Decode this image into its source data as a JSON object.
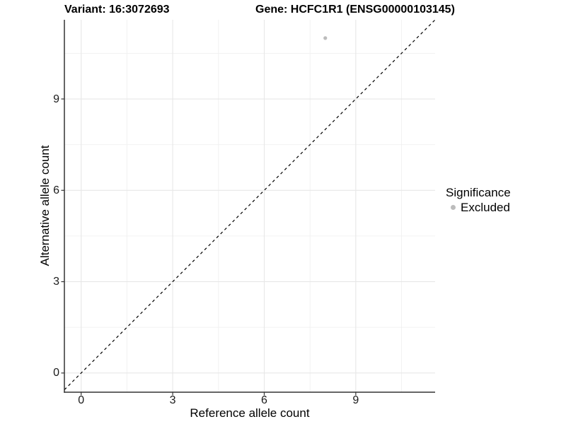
{
  "title": {
    "variant": "Variant: 16:3072693",
    "gene": "Gene: HCFC1R1 (ENSG00000103145)"
  },
  "axes": {
    "x": {
      "label": "Reference allele count"
    },
    "y": {
      "label": "Alternative allele count"
    }
  },
  "legend": {
    "title": "Significance",
    "items": [
      {
        "label": "Excluded",
        "color": "#bcbcbc"
      }
    ]
  },
  "colors": {
    "background": "#ffffff",
    "axis_line": "#333333",
    "major_grid": "#e7e7e7",
    "minor_grid": "#f0f0f0",
    "tick_mark": "#333333",
    "reference_line": "#000000",
    "point_excluded": "#bcbcbc"
  },
  "chart_data": {
    "type": "scatter",
    "title": "Variant: 16:3072693    Gene: HCFC1R1 (ENSG00000103145)",
    "xlabel": "Reference allele count",
    "ylabel": "Alternative allele count",
    "xticks": [
      0,
      3,
      6,
      9
    ],
    "yticks": [
      0,
      3,
      6,
      9
    ],
    "xminor": [
      1.5,
      4.5,
      7.5,
      10.5
    ],
    "yminor": [
      1.5,
      4.5,
      7.5,
      10.5
    ],
    "xlim": [
      -0.55,
      11.6
    ],
    "ylim": [
      -0.63,
      11.6
    ],
    "grid": true,
    "legend_position": "right-middle",
    "series": [
      {
        "name": "Excluded",
        "color": "#bcbcbc",
        "points": [
          {
            "x": 8,
            "y": 11
          }
        ]
      }
    ],
    "reference_line": {
      "kind": "identity",
      "slope": 1,
      "intercept": 0,
      "style": "dashed"
    }
  }
}
